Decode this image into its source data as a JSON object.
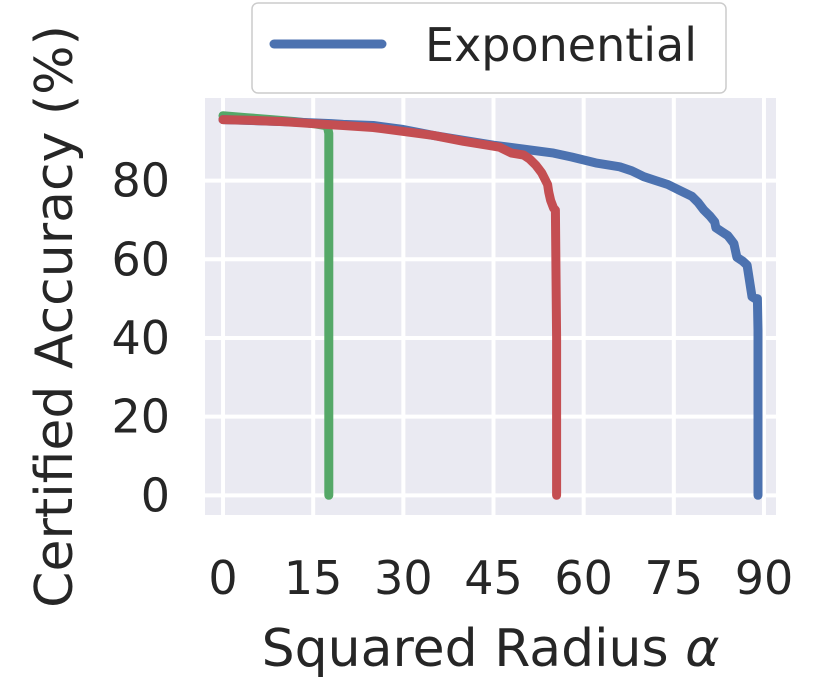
{
  "chart_data": {
    "type": "line",
    "xlabel": "Squared Radius ",
    "xlabel_symbol": "α",
    "ylabel": "Certified Accuracy (%)",
    "xlim": [
      -3,
      92
    ],
    "ylim": [
      -5,
      101
    ],
    "xticks": [
      0,
      15,
      30,
      45,
      60,
      75,
      90
    ],
    "yticks": [
      0,
      20,
      40,
      60,
      80
    ],
    "grid": true,
    "background": "#EAEAF2",
    "grid_color": "#FFFFFF",
    "legend": {
      "placement": "top-center",
      "entries": [
        {
          "name": "Exponential",
          "color": "#4C72B0"
        }
      ]
    },
    "series": [
      {
        "name": "Exponential",
        "color": "#4C72B0",
        "x": [
          0,
          10,
          18,
          20,
          25,
          30,
          35,
          45,
          50,
          55,
          58,
          62,
          66,
          68,
          70,
          72,
          74,
          76,
          78,
          79,
          80,
          81,
          81.8,
          82,
          83,
          84,
          84.5,
          85,
          85.5,
          86.5,
          87.2,
          88,
          88.5,
          88.9,
          89,
          89,
          89
        ],
        "y": [
          95.5,
          95,
          94.5,
          94.3,
          94,
          93,
          91.5,
          89,
          88,
          87,
          86,
          84.5,
          83.5,
          82.5,
          81,
          80,
          79,
          77.5,
          76,
          74.5,
          72.5,
          71,
          69.5,
          68,
          67,
          66,
          65,
          64,
          60.5,
          59.5,
          58.5,
          50.5,
          50,
          50,
          42,
          20,
          0
        ]
      },
      {
        "color": "#55A868",
        "x": [
          0,
          4,
          8,
          12,
          15,
          17,
          17.4,
          17.6,
          17.6
        ],
        "y": [
          96.5,
          96,
          95.5,
          95,
          94.5,
          94,
          93.5,
          92,
          0
        ]
      },
      {
        "color": "#C44E52",
        "x": [
          0,
          5,
          10,
          15,
          20,
          25,
          30,
          35,
          40,
          44,
          46,
          48,
          50,
          51,
          52,
          52.5,
          53,
          53.5,
          54,
          54.2,
          54.5,
          55,
          55.3,
          55.5,
          55.5
        ],
        "y": [
          95.5,
          95.3,
          95,
          94.5,
          94,
          93.5,
          92.5,
          91.5,
          90,
          89,
          88.5,
          87,
          86.5,
          85.5,
          84,
          83,
          82,
          80.5,
          79,
          77,
          75,
          73,
          72.5,
          40,
          0
        ]
      }
    ]
  }
}
